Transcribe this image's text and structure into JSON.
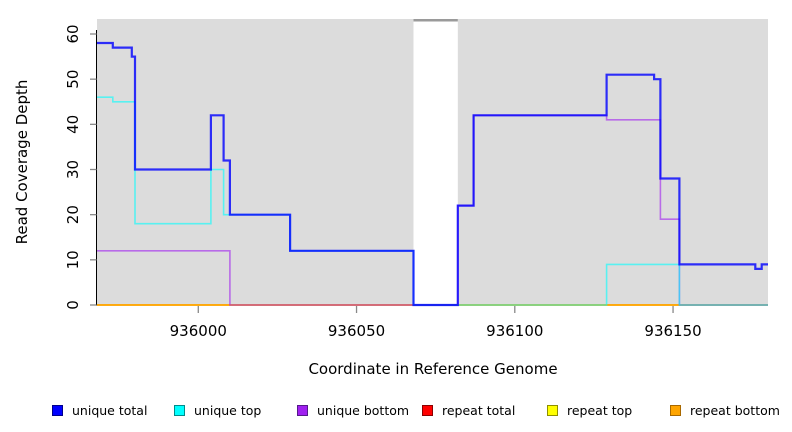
{
  "chart_data": {
    "type": "line",
    "subtype": "step-coverage-plot",
    "title": "",
    "xlabel": "Coordinate in Reference Genome",
    "ylabel": "Read Coverage Depth",
    "xlim": [
      935968,
      936180
    ],
    "ylim": [
      0,
      63
    ],
    "x_ticks": [
      936000,
      936050,
      936100,
      936150
    ],
    "y_ticks": [
      0,
      10,
      20,
      30,
      40,
      50,
      60
    ],
    "grid": false,
    "legend_position": "bottom-horizontal",
    "gap_region": {
      "start": 936068,
      "end": 936082
    },
    "colors": {
      "panel": "#DCDCDC",
      "gap_fill": "#FFFFFF",
      "gap_bar": "#9A9A9A",
      "axis": "#000000",
      "tick": "#888888"
    },
    "series": [
      {
        "name": "unique total",
        "color": "#0000FF",
        "width": 2.2,
        "opacity": 0.8,
        "segments": [
          [
            935968,
            935973,
            58
          ],
          [
            935973,
            935979,
            57
          ],
          [
            935979,
            935980,
            55
          ],
          [
            935980,
            936004,
            30
          ],
          [
            936004,
            936008,
            42
          ],
          [
            936008,
            936010,
            32
          ],
          [
            936010,
            936029,
            20
          ],
          [
            936029,
            936068,
            12
          ],
          [
            936068,
            936082,
            0
          ],
          [
            936082,
            936087,
            22
          ],
          [
            936087,
            936129,
            42
          ],
          [
            936129,
            936144,
            51
          ],
          [
            936144,
            936146,
            50
          ],
          [
            936146,
            936152,
            28
          ],
          [
            936152,
            936176,
            9
          ],
          [
            936176,
            936178,
            8
          ],
          [
            936178,
            936180,
            9
          ]
        ]
      },
      {
        "name": "unique top",
        "color": "#00FFFF",
        "width": 1.6,
        "opacity": 0.6,
        "segments": [
          [
            935968,
            935973,
            46
          ],
          [
            935973,
            935980,
            45
          ],
          [
            935980,
            936004,
            18
          ],
          [
            936004,
            936008,
            30
          ],
          [
            936008,
            936029,
            20
          ],
          [
            936029,
            936068,
            12
          ],
          [
            936068,
            936129,
            0
          ],
          [
            936129,
            936152,
            9
          ],
          [
            936152,
            936180,
            0
          ]
        ]
      },
      {
        "name": "unique bottom",
        "color": "#A020F0",
        "width": 1.6,
        "opacity": 0.6,
        "segments": [
          [
            935968,
            936010,
            12
          ],
          [
            936010,
            936082,
            0
          ],
          [
            936082,
            936087,
            22
          ],
          [
            936087,
            936129,
            42
          ],
          [
            936129,
            936146,
            41
          ],
          [
            936146,
            936152,
            19
          ],
          [
            936152,
            936180,
            0
          ]
        ]
      },
      {
        "name": "repeat total",
        "color": "#FF0000",
        "width": 1.4,
        "opacity": 0.9,
        "segments": [
          [
            935968,
            936180,
            0
          ]
        ]
      },
      {
        "name": "repeat top",
        "color": "#FFFF00",
        "width": 1.4,
        "opacity": 0.9,
        "segments": [
          [
            935968,
            936180,
            0
          ]
        ]
      },
      {
        "name": "repeat bottom",
        "color": "#FFA500",
        "width": 1.6,
        "opacity": 1,
        "segments": [
          [
            935968,
            936180,
            0
          ]
        ]
      }
    ],
    "draw_order": [
      3,
      4,
      5,
      2,
      1,
      0
    ],
    "legend": [
      {
        "label": "unique total",
        "fill": "#0000FF",
        "border": "#00008B"
      },
      {
        "label": "unique top",
        "fill": "#00FFFF",
        "border": "#008B8B"
      },
      {
        "label": "unique bottom",
        "fill": "#A020F0",
        "border": "#551A8B"
      },
      {
        "label": "repeat total",
        "fill": "#FF0000",
        "border": "#8B0000"
      },
      {
        "label": "repeat top",
        "fill": "#FFFF00",
        "border": "#8F8F00"
      },
      {
        "label": "repeat bottom",
        "fill": "#FFA500",
        "border": "#A86800"
      }
    ]
  }
}
